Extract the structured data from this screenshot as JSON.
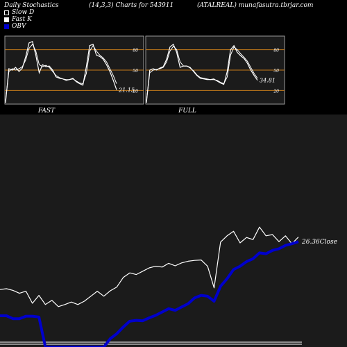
{
  "header": {
    "title": "Daily Stochastics",
    "params": "(14,3,3) Charts for 543911",
    "source": "(ATALREAL) munafasutra.tbrjar.com"
  },
  "legend": [
    {
      "label": "Slow  D",
      "color": "#ffffff",
      "style": "outline"
    },
    {
      "label": "Fast K",
      "color": "#ffffff",
      "style": "fill"
    },
    {
      "label": "OBV",
      "color": "#0000cc",
      "style": "fill"
    }
  ],
  "chart_data": [
    {
      "type": "line",
      "title": "FAST",
      "levels": [
        80,
        50,
        20
      ],
      "ylim": [
        0,
        100
      ],
      "last_value_label": "21.15",
      "series": [
        {
          "role": "fast_k",
          "values": [
            2,
            52,
            50,
            54,
            48,
            53,
            70,
            90,
            92,
            72,
            46,
            58,
            55,
            56,
            50,
            40,
            38,
            37,
            35,
            36,
            38,
            33,
            30,
            28,
            55,
            86,
            88,
            72,
            70,
            66,
            58,
            48,
            35,
            21
          ]
        },
        {
          "role": "slow_d",
          "values": [
            5,
            48,
            52,
            50,
            52,
            55,
            65,
            82,
            88,
            78,
            58,
            55,
            57,
            54,
            48,
            42,
            39,
            37,
            36,
            36,
            37,
            34,
            31,
            30,
            45,
            78,
            86,
            78,
            72,
            68,
            62,
            52,
            42,
            30
          ]
        }
      ]
    },
    {
      "type": "line",
      "title": "FULL",
      "levels": [
        80,
        50,
        20
      ],
      "ylim": [
        0,
        100
      ],
      "last_value_label": "34.81",
      "series": [
        {
          "role": "fast_k",
          "values": [
            2,
            50,
            52,
            50,
            53,
            55,
            66,
            84,
            88,
            76,
            54,
            56,
            56,
            54,
            48,
            42,
            38,
            37,
            36,
            36,
            37,
            34,
            31,
            29,
            48,
            80,
            86,
            76,
            71,
            67,
            60,
            50,
            42,
            35
          ]
        },
        {
          "role": "slow_d",
          "values": [
            4,
            46,
            50,
            51,
            52,
            54,
            62,
            78,
            85,
            80,
            62,
            56,
            56,
            53,
            49,
            43,
            39,
            38,
            37,
            36,
            36,
            35,
            32,
            30,
            40,
            72,
            84,
            80,
            74,
            69,
            63,
            54,
            45,
            38
          ]
        }
      ]
    },
    {
      "type": "line",
      "title": "",
      "last_value_label": "26.36",
      "last_value_suffix": "Close",
      "series": [
        {
          "role": "price",
          "values": [
            13.8,
            14.0,
            13.6,
            12.9,
            13.4,
            10.5,
            12.4,
            10.2,
            11.2,
            9.7,
            10.2,
            10.8,
            10.2,
            11.0,
            12.2,
            13.4,
            12.2,
            13.5,
            14.4,
            16.7,
            17.8,
            17.4,
            18.2,
            19.0,
            19.4,
            19.2,
            20.1,
            19.5,
            20.2,
            20.6,
            20.8,
            20.9,
            19.4,
            14.2,
            25.2,
            26.7,
            27.8,
            25.0,
            26.3,
            25.8,
            28.8,
            26.7,
            27.0,
            25.3,
            26.7,
            24.8,
            26.4
          ]
        },
        {
          "role": "obv",
          "values": [
            7.5,
            7.5,
            6.8,
            6.8,
            7.4,
            7.4,
            7.2,
            0.0,
            0.0,
            0.0,
            0.0,
            0.0,
            0.0,
            0.0,
            0.0,
            0.0,
            0.0,
            2.0,
            3.2,
            4.8,
            6.2,
            6.4,
            6.3,
            7.0,
            7.6,
            8.4,
            9.2,
            8.8,
            9.6,
            10.4,
            11.8,
            12.4,
            12.2,
            11.0,
            14.6,
            16.4,
            18.6,
            19.4,
            20.5,
            21.2,
            22.6,
            22.4,
            23.2,
            23.6,
            24.4,
            24.8,
            25.3
          ]
        }
      ]
    }
  ]
}
